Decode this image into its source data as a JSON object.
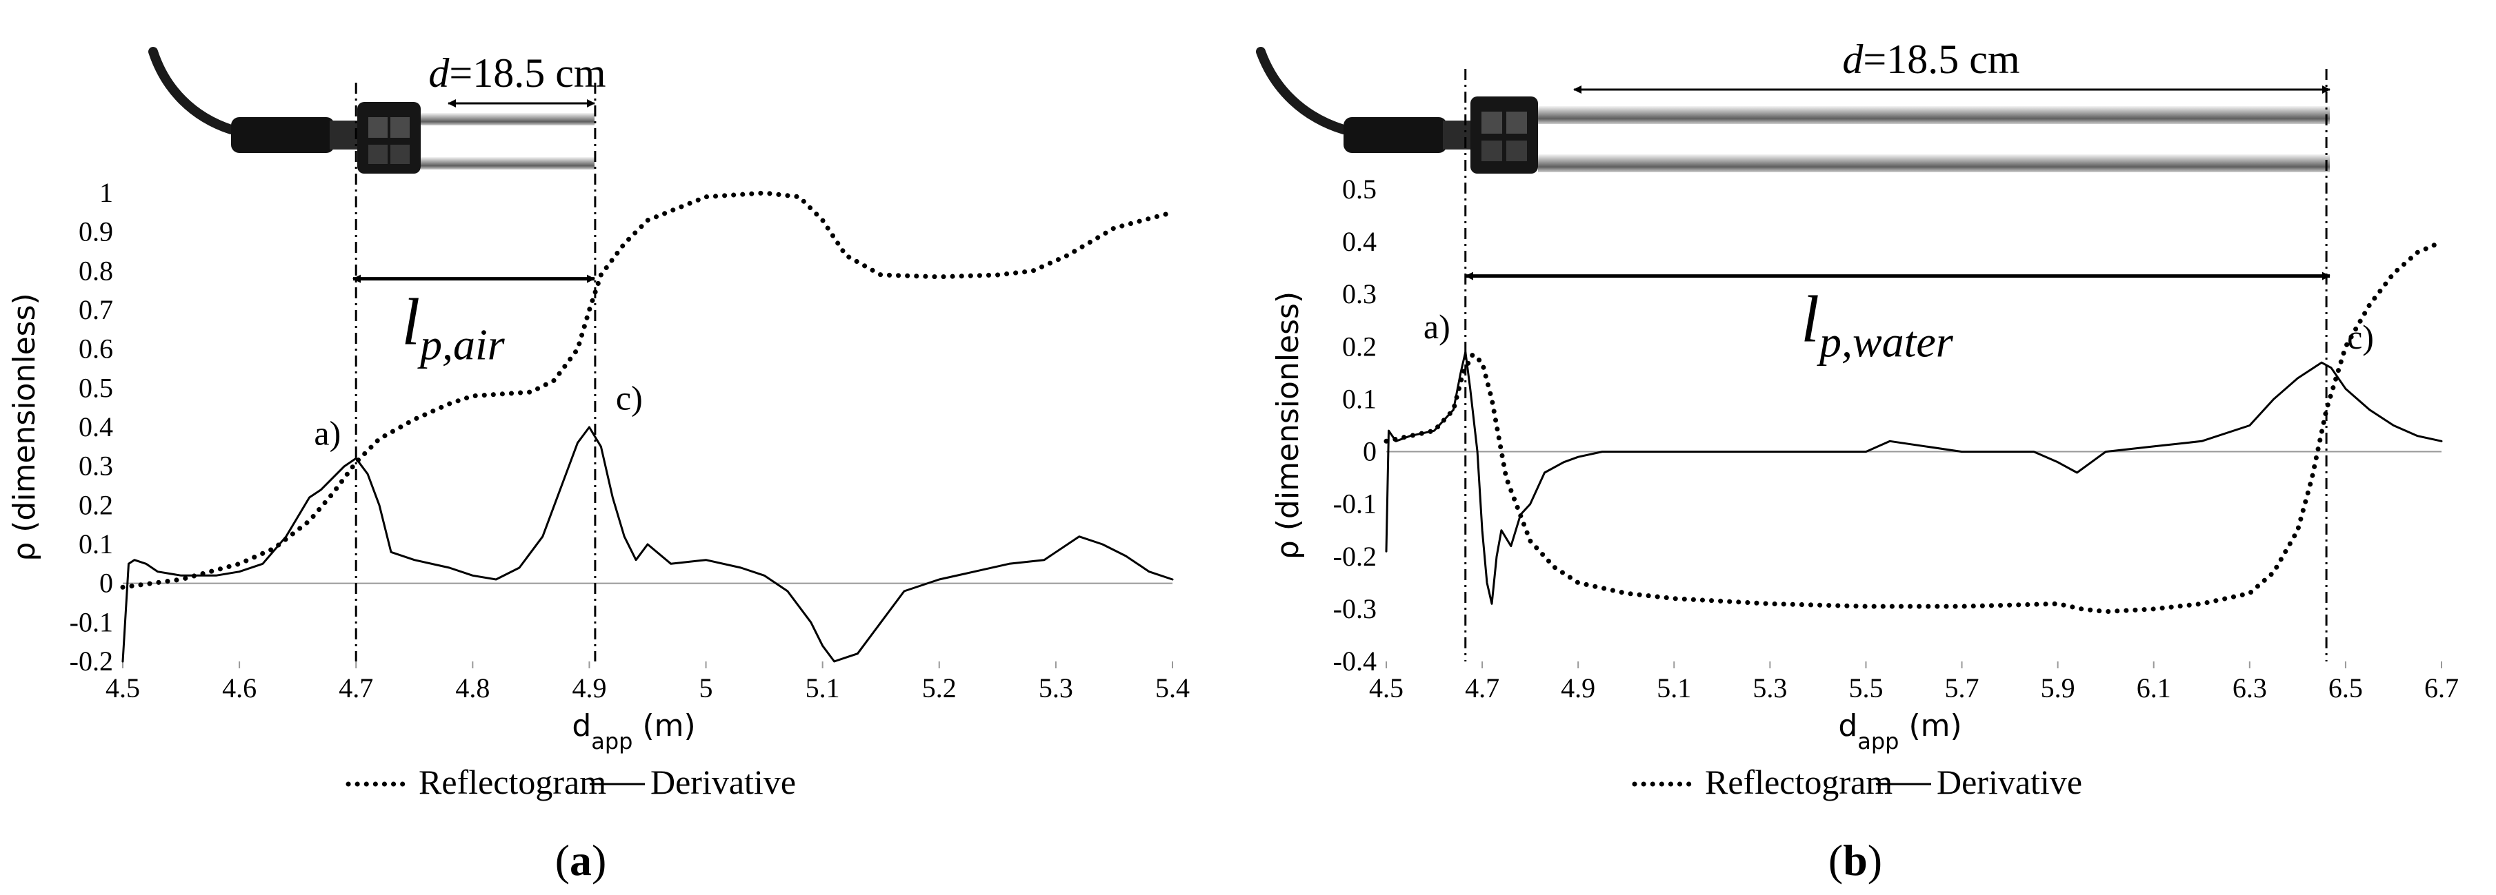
{
  "chart_data": [
    {
      "type": "line",
      "panel": "(a)",
      "caption_letter": "a",
      "ylabel": "ρ (dimensionless)",
      "xlabel_main": "d",
      "xlabel_sub": "app",
      "xlabel_unit": " (m)",
      "xlim": [
        4.5,
        5.4
      ],
      "ylim": [
        -0.2,
        1
      ],
      "xticks": [
        4.5,
        4.6,
        4.7,
        4.8,
        4.9,
        5,
        5.1,
        5.2,
        5.3,
        5.4
      ],
      "xtick_labels": [
        "4.5",
        "4.6",
        "4.7",
        "4.8",
        "4.9",
        "5",
        "5.1",
        "5.2",
        "5.3",
        "5.4"
      ],
      "yticks": [
        -0.2,
        -0.1,
        0,
        0.1,
        0.2,
        0.3,
        0.4,
        0.5,
        0.6,
        0.7,
        0.8,
        0.9,
        1
      ],
      "ytick_labels": [
        "-0.2",
        "-0.1",
        "0",
        "0.1",
        "0.2",
        "0.3",
        "0.4",
        "0.5",
        "0.6",
        "0.7",
        "0.8",
        "0.9",
        "1"
      ],
      "grid": false,
      "legend": {
        "position": "bottom",
        "entries": [
          "Reflectogram",
          "Derivative"
        ]
      },
      "series": [
        {
          "name": "Reflectogram",
          "style": "dotted",
          "x": [
            4.5,
            4.55,
            4.6,
            4.63,
            4.66,
            4.68,
            4.7,
            4.72,
            4.75,
            4.78,
            4.8,
            4.85,
            4.87,
            4.89,
            4.9,
            4.91,
            4.93,
            4.95,
            5.0,
            5.05,
            5.08,
            5.1,
            5.12,
            5.15,
            5.2,
            5.25,
            5.28,
            5.31,
            5.35,
            5.4
          ],
          "y": [
            -0.01,
            0.01,
            0.05,
            0.09,
            0.16,
            0.23,
            0.31,
            0.37,
            0.42,
            0.46,
            0.48,
            0.49,
            0.52,
            0.6,
            0.7,
            0.79,
            0.87,
            0.93,
            0.99,
            1.0,
            0.99,
            0.93,
            0.84,
            0.79,
            0.785,
            0.79,
            0.8,
            0.84,
            0.91,
            0.95
          ]
        },
        {
          "name": "Derivative",
          "style": "solid",
          "x": [
            4.5,
            4.505,
            4.51,
            4.52,
            4.53,
            4.55,
            4.58,
            4.6,
            4.62,
            4.64,
            4.66,
            4.67,
            4.68,
            4.69,
            4.7,
            4.71,
            4.72,
            4.73,
            4.75,
            4.78,
            4.8,
            4.82,
            4.84,
            4.86,
            4.87,
            4.88,
            4.89,
            4.9,
            4.91,
            4.92,
            4.93,
            4.94,
            4.95,
            4.97,
            5.0,
            5.03,
            5.05,
            5.07,
            5.09,
            5.1,
            5.11,
            5.12,
            5.13,
            5.15,
            5.17,
            5.2,
            5.23,
            5.26,
            5.29,
            5.32,
            5.34,
            5.36,
            5.38,
            5.4
          ],
          "y": [
            -0.2,
            0.05,
            0.06,
            0.05,
            0.03,
            0.02,
            0.02,
            0.03,
            0.05,
            0.12,
            0.22,
            0.24,
            0.27,
            0.3,
            0.32,
            0.28,
            0.2,
            0.08,
            0.06,
            0.04,
            0.02,
            0.01,
            0.04,
            0.12,
            0.2,
            0.28,
            0.36,
            0.4,
            0.35,
            0.22,
            0.12,
            0.06,
            0.1,
            0.05,
            0.06,
            0.04,
            0.02,
            -0.02,
            -0.1,
            -0.16,
            -0.2,
            -0.19,
            -0.18,
            -0.1,
            -0.02,
            0.01,
            0.03,
            0.05,
            0.06,
            0.12,
            0.1,
            0.07,
            0.03,
            0.01
          ]
        }
      ],
      "annotations": [
        {
          "text": "a)",
          "x": 4.7,
          "y": 0.32
        },
        {
          "text": "c)",
          "x": 4.905,
          "y": 0.41
        }
      ],
      "markers": {
        "vlines": [
          4.7,
          4.905
        ]
      },
      "probe_length": {
        "prefix": "d",
        "value": "=18.5 cm"
      },
      "lp": {
        "base": "l",
        "sub": "p,air",
        "y": 0.78
      }
    },
    {
      "type": "line",
      "panel": "(b)",
      "caption_letter": "b",
      "ylabel": "ρ (dimensionless)",
      "xlabel_main": "d",
      "xlabel_sub": "app",
      "xlabel_unit": " (m)",
      "xlim": [
        4.5,
        6.7
      ],
      "ylim": [
        -0.4,
        0.5
      ],
      "xticks": [
        4.5,
        4.7,
        4.9,
        5.1,
        5.3,
        5.5,
        5.7,
        5.9,
        6.1,
        6.3,
        6.5,
        6.7
      ],
      "xtick_labels": [
        "4.5",
        "4.7",
        "4.9",
        "5.1",
        "5.3",
        "5.5",
        "5.7",
        "5.9",
        "6.1",
        "6.3",
        "6.5",
        "6.7"
      ],
      "yticks": [
        -0.4,
        -0.3,
        -0.2,
        -0.1,
        0,
        0.1,
        0.2,
        0.3,
        0.4,
        0.5
      ],
      "ytick_labels": [
        "-0.4",
        "-0.3",
        "-0.2",
        "-0.1",
        "0",
        "0.1",
        "0.2",
        "0.3",
        "0.4",
        "0.5"
      ],
      "grid": false,
      "legend": {
        "position": "bottom",
        "entries": [
          "Reflectogram",
          "Derivative"
        ]
      },
      "series": [
        {
          "name": "Reflectogram",
          "style": "dotted",
          "x": [
            4.5,
            4.55,
            4.6,
            4.64,
            4.66,
            4.68,
            4.7,
            4.72,
            4.75,
            4.8,
            4.85,
            4.9,
            5.0,
            5.1,
            5.3,
            5.5,
            5.7,
            5.9,
            5.95,
            6.0,
            6.1,
            6.2,
            6.3,
            6.35,
            6.4,
            6.43,
            6.46,
            6.5,
            6.55,
            6.6,
            6.65,
            6.7
          ],
          "y": [
            0.02,
            0.03,
            0.04,
            0.08,
            0.15,
            0.185,
            0.17,
            0.1,
            -0.05,
            -0.17,
            -0.22,
            -0.25,
            -0.27,
            -0.28,
            -0.29,
            -0.295,
            -0.295,
            -0.29,
            -0.3,
            -0.305,
            -0.3,
            -0.29,
            -0.27,
            -0.23,
            -0.15,
            -0.05,
            0.08,
            0.2,
            0.28,
            0.34,
            0.38,
            0.4
          ]
        },
        {
          "name": "Derivative",
          "style": "solid",
          "x": [
            4.5,
            4.505,
            4.52,
            4.55,
            4.6,
            4.64,
            4.655,
            4.665,
            4.675,
            4.69,
            4.7,
            4.71,
            4.72,
            4.73,
            4.74,
            4.76,
            4.78,
            4.8,
            4.83,
            4.87,
            4.9,
            4.95,
            5.1,
            5.3,
            5.5,
            5.55,
            5.7,
            5.85,
            5.9,
            5.94,
            5.97,
            6.0,
            6.1,
            6.2,
            6.3,
            6.35,
            6.4,
            6.45,
            6.47,
            6.5,
            6.55,
            6.6,
            6.65,
            6.7
          ],
          "y": [
            -0.19,
            0.04,
            0.02,
            0.03,
            0.04,
            0.08,
            0.15,
            0.19,
            0.12,
            0.0,
            -0.15,
            -0.25,
            -0.29,
            -0.2,
            -0.15,
            -0.18,
            -0.12,
            -0.1,
            -0.04,
            -0.02,
            -0.01,
            0.0,
            0.0,
            0.0,
            0.0,
            0.02,
            0.0,
            0.0,
            -0.02,
            -0.04,
            -0.02,
            0.0,
            0.01,
            0.02,
            0.05,
            0.1,
            0.14,
            0.17,
            0.16,
            0.12,
            0.08,
            0.05,
            0.03,
            0.02
          ]
        }
      ],
      "annotations": [
        {
          "text": "a)",
          "x": 4.665,
          "y": 0.19
        },
        {
          "text": "c)",
          "x": 6.46,
          "y": 0.17
        }
      ],
      "markers": {
        "vlines": [
          4.665,
          6.46
        ]
      },
      "probe_length": {
        "prefix": "d",
        "value": "=18.5 cm"
      },
      "lp": {
        "base": "l",
        "sub": "p,water",
        "y": 0.335
      }
    }
  ]
}
